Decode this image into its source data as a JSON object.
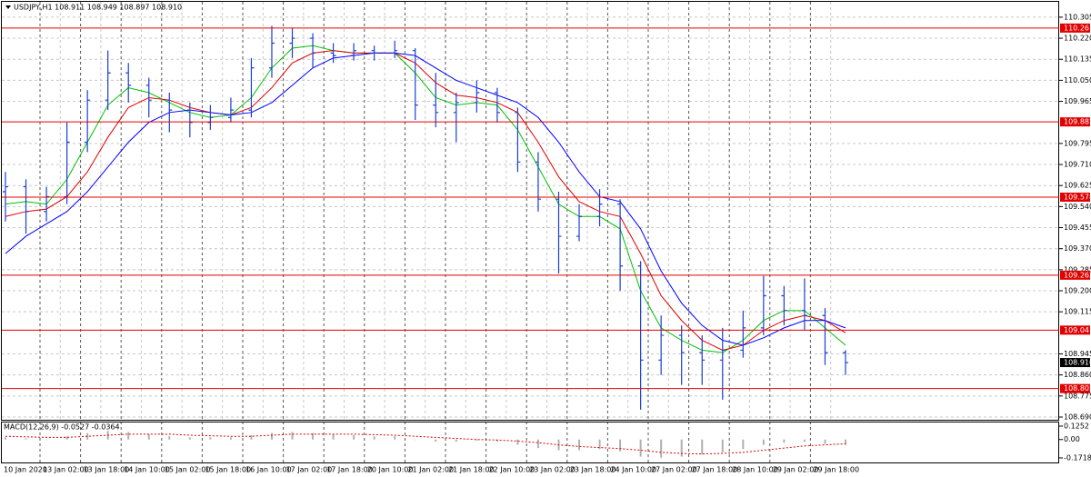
{
  "chart_data": [
    {
      "type": "ohlc",
      "title": "USDJPY,H1  108.911 108.949 108.897 108.910",
      "bar_color": "#1c3fd4",
      "open": [
        109.6,
        109.62,
        109.52,
        109.58,
        109.8,
        109.97,
        110.08,
        110.03,
        109.97,
        109.93,
        109.88,
        109.9,
        109.93,
        110.1,
        110.2,
        110.22,
        110.16,
        110.15,
        110.17,
        110.16,
        110.17,
        109.95,
        109.92,
        109.96,
        110.0,
        109.92,
        109.72,
        109.57,
        109.42,
        109.5,
        109.55,
        109.3,
        108.92,
        109.02,
        108.95,
        108.92,
        108.96,
        109.05,
        109.18,
        109.12,
        109.1,
        108.95
      ],
      "high": [
        109.68,
        109.65,
        109.62,
        109.88,
        110.01,
        110.17,
        110.12,
        110.06,
        110.0,
        109.96,
        109.95,
        109.98,
        110.14,
        110.27,
        110.26,
        110.24,
        110.2,
        110.2,
        110.19,
        110.21,
        110.18,
        110.08,
        110.0,
        110.05,
        110.02,
        109.94,
        109.76,
        109.6,
        109.55,
        109.61,
        109.57,
        109.32,
        109.1,
        109.06,
        109.02,
        109.05,
        109.12,
        109.26,
        109.22,
        109.25,
        109.13,
        108.96
      ],
      "low": [
        109.48,
        109.43,
        109.48,
        109.55,
        109.76,
        109.93,
        109.96,
        109.9,
        109.84,
        109.82,
        109.85,
        109.88,
        109.9,
        110.06,
        110.14,
        110.1,
        110.12,
        110.13,
        110.13,
        110.14,
        109.89,
        109.86,
        109.8,
        109.92,
        109.88,
        109.68,
        109.52,
        109.27,
        109.4,
        109.46,
        109.2,
        108.72,
        108.86,
        108.82,
        108.82,
        108.76,
        108.93,
        109.02,
        109.06,
        109.04,
        108.9,
        108.86
      ],
      "close": [
        109.62,
        109.52,
        109.58,
        109.8,
        109.97,
        110.08,
        110.03,
        109.97,
        109.93,
        109.88,
        109.9,
        109.93,
        110.1,
        110.2,
        110.22,
        110.16,
        110.15,
        110.17,
        110.16,
        110.17,
        109.95,
        109.92,
        109.96,
        110.0,
        109.92,
        109.72,
        109.57,
        109.42,
        109.5,
        109.55,
        109.3,
        108.92,
        109.02,
        108.95,
        108.92,
        108.96,
        109.05,
        109.18,
        109.12,
        109.1,
        108.95,
        108.91
      ],
      "series": [
        {
          "color": "#00c000",
          "values": [
            109.55,
            109.56,
            109.55,
            109.65,
            109.8,
            109.95,
            110.02,
            110.0,
            109.96,
            109.92,
            109.9,
            109.91,
            109.98,
            110.1,
            110.18,
            110.19,
            110.17,
            110.16,
            110.16,
            110.16,
            110.08,
            109.98,
            109.95,
            109.96,
            109.95,
            109.85,
            109.7,
            109.55,
            109.5,
            109.5,
            109.45,
            109.2,
            109.05,
            109.0,
            108.96,
            108.95,
            109.0,
            109.08,
            109.12,
            109.12,
            109.05,
            108.98
          ]
        },
        {
          "color": "#e00000",
          "values": [
            109.5,
            109.52,
            109.53,
            109.58,
            109.68,
            109.82,
            109.94,
            109.98,
            109.97,
            109.94,
            109.92,
            109.91,
            109.94,
            110.02,
            110.12,
            110.16,
            110.17,
            110.16,
            110.16,
            110.16,
            110.12,
            110.04,
            109.99,
            109.98,
            109.96,
            109.92,
            109.8,
            109.66,
            109.56,
            109.52,
            109.5,
            109.35,
            109.18,
            109.08,
            109.0,
            108.96,
            108.98,
            109.04,
            109.08,
            109.1,
            109.08,
            109.03
          ]
        },
        {
          "color": "#0000ff",
          "values": [
            109.35,
            109.42,
            109.47,
            109.52,
            109.6,
            109.7,
            109.8,
            109.88,
            109.92,
            109.93,
            109.92,
            109.91,
            109.92,
            109.96,
            110.03,
            110.1,
            110.14,
            110.15,
            110.16,
            110.16,
            110.15,
            110.1,
            110.05,
            110.02,
            109.99,
            109.96,
            109.9,
            109.8,
            109.68,
            109.58,
            109.56,
            109.45,
            109.28,
            109.15,
            109.06,
            109.0,
            108.98,
            109.01,
            109.05,
            109.08,
            109.08,
            109.05
          ]
        }
      ],
      "levels": {
        "color": "#e00000",
        "values": [
          110.261,
          109.882,
          109.578,
          109.263,
          109.041,
          108.805
        ]
      },
      "last_price": 108.91,
      "last_price_label": "108.910",
      "ylim": [
        108.679,
        110.356
      ],
      "yticks": [
        110.305,
        {
          "value": 110.22,
          "label": "110.220"
        },
        110.135,
        {
          "value": 110.05,
          "label": "110.050"
        },
        109.965,
        109.795,
        {
          "value": 109.71,
          "label": "109.710"
        },
        109.625,
        {
          "value": 109.54,
          "label": "109.540"
        },
        109.455,
        {
          "value": 109.37,
          "label": "109.370"
        },
        109.285,
        {
          "value": 109.2,
          "label": "109.200"
        },
        109.115,
        108.945,
        {
          "value": 108.86,
          "label": "108.860"
        },
        108.775,
        {
          "value": 108.69,
          "label": "108.690"
        }
      ],
      "grid": true,
      "time_labels": [
        "10 Jan 2020",
        "13 Jan 02:00",
        "13 Jan 18:00",
        "14 Jan 10:00",
        "15 Jan 02:00",
        "15 Jan 18:00",
        "16 Jan 10:00",
        "17 Jan 02:00",
        "17 Jan 18:00",
        "20 Jan 10:00",
        "21 Jan 02:00",
        "21 Jan 18:00",
        "22 Jan 10:00",
        "23 Jan 02:00",
        "23 Jan 18:00",
        "24 Jan 10:00",
        "27 Jan 02:00",
        "27 Jan 18:00",
        "28 Jan 10:00",
        "29 Jan 02:00",
        "29 Jan 18:00"
      ]
    },
    {
      "type": "macd",
      "title": "MACD(12,26,9) -0.0527 -0.0364",
      "series": [
        {
          "kind": "bar",
          "color": "#b0b0b0",
          "values": [
            0.02,
            0.01,
            0.0,
            0.03,
            0.06,
            0.08,
            0.07,
            0.05,
            0.03,
            0.02,
            0.02,
            0.02,
            0.04,
            0.06,
            0.07,
            0.06,
            0.05,
            0.04,
            0.03,
            0.03,
            0.0,
            -0.02,
            -0.02,
            -0.01,
            -0.02,
            -0.05,
            -0.08,
            -0.1,
            -0.1,
            -0.09,
            -0.11,
            -0.16,
            -0.17,
            -0.16,
            -0.14,
            -0.12,
            -0.09,
            -0.05,
            -0.03,
            -0.02,
            -0.04,
            -0.05
          ]
        },
        {
          "kind": "line",
          "color": "#e00000",
          "values": [
            0.03,
            0.025,
            0.02,
            0.02,
            0.03,
            0.04,
            0.05,
            0.05,
            0.05,
            0.04,
            0.035,
            0.03,
            0.03,
            0.04,
            0.05,
            0.05,
            0.05,
            0.05,
            0.045,
            0.04,
            0.03,
            0.02,
            0.01,
            0.0,
            -0.005,
            -0.015,
            -0.03,
            -0.05,
            -0.065,
            -0.075,
            -0.085,
            -0.1,
            -0.12,
            -0.13,
            -0.135,
            -0.13,
            -0.12,
            -0.1,
            -0.08,
            -0.06,
            -0.05,
            -0.04
          ]
        }
      ],
      "ylim": [
        -0.206,
        0.159
      ],
      "yticks": [
        0.1252,
        {
          "value": 0,
          "label": "0.00"
        },
        -0.1718
      ]
    }
  ]
}
